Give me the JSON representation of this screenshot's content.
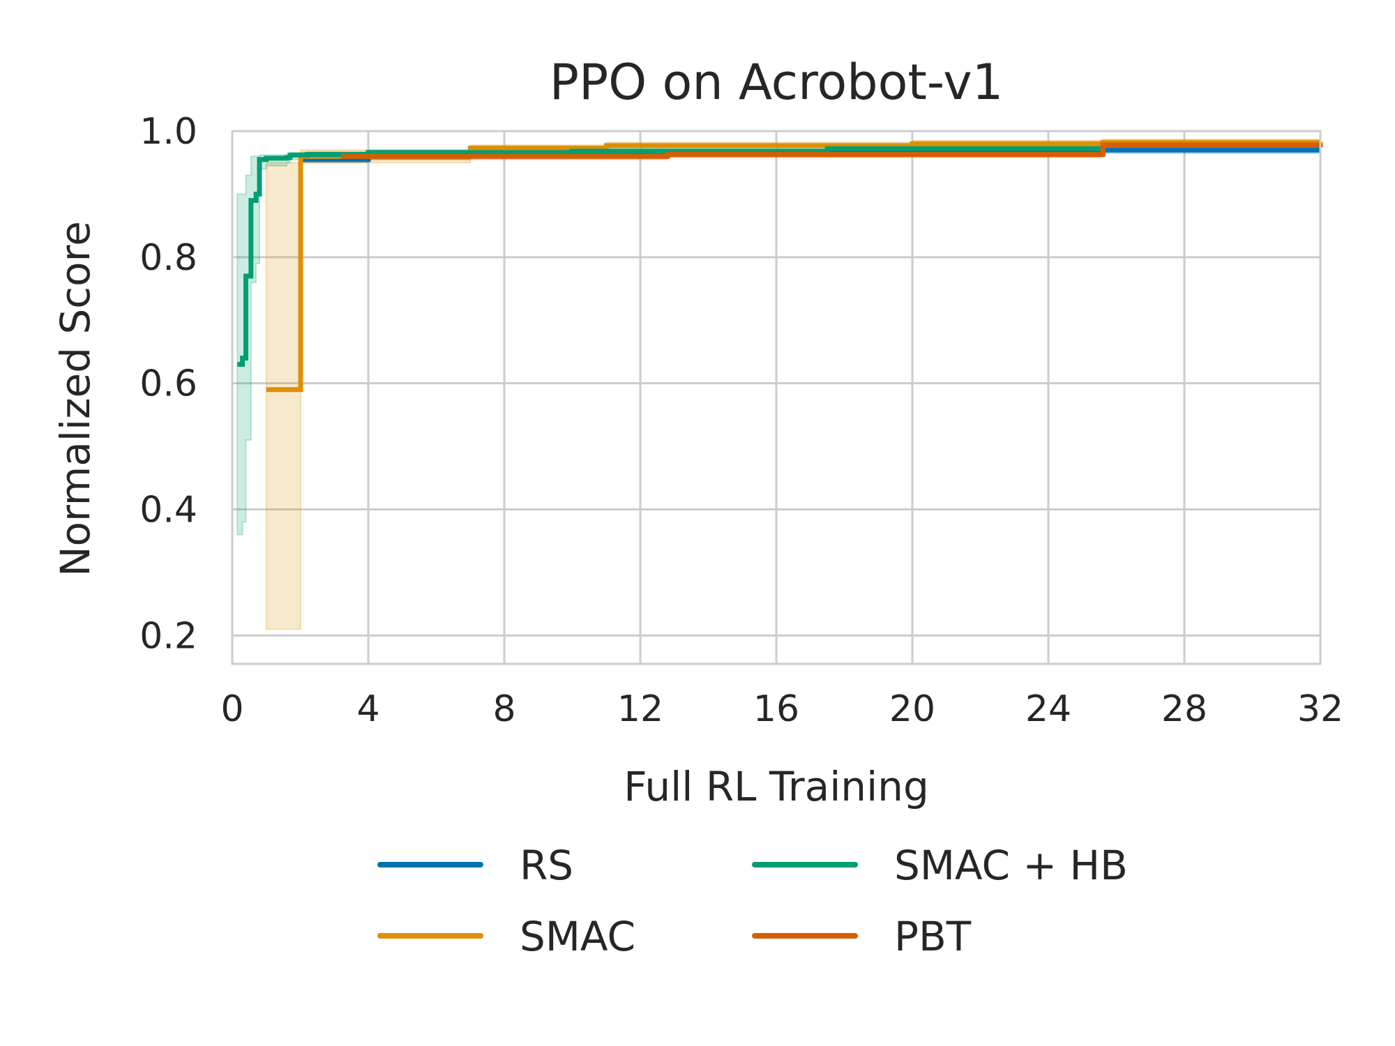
{
  "chart_data": {
    "type": "line",
    "title": "PPO on Acrobot-v1",
    "xlabel": "Full RL Training",
    "ylabel": "Normalized Score",
    "xlim": [
      0,
      32
    ],
    "ylim": [
      0.155,
      1.0
    ],
    "xticks": [
      "0",
      "4",
      "8",
      "12",
      "16",
      "20",
      "24",
      "28",
      "32"
    ],
    "yticks": [
      "0.2",
      "0.4",
      "0.6",
      "0.8",
      "1.0"
    ],
    "grid": true,
    "legend": {
      "placement": "bottom-center",
      "columns": 2
    },
    "series": [
      {
        "name": "RS",
        "color": "#0173b2",
        "step": true,
        "x": [
          2.0,
          4.0,
          7.0,
          11.0,
          18.0,
          25.0,
          32.0
        ],
        "y": [
          0.955,
          0.96,
          0.962,
          0.965,
          0.968,
          0.97,
          0.97
        ],
        "band_lo": [
          0.95,
          0.955,
          0.958,
          0.96,
          0.963,
          0.965,
          0.965
        ],
        "band_hi": [
          0.96,
          0.965,
          0.968,
          0.97,
          0.973,
          0.975,
          0.975
        ]
      },
      {
        "name": "SMAC",
        "color": "#de8f05",
        "step": true,
        "x": [
          1.0,
          2.0,
          2.01,
          7.0,
          11.0,
          20.0,
          25.6,
          32.0
        ],
        "y": [
          0.59,
          0.59,
          0.96,
          0.973,
          0.977,
          0.98,
          0.982,
          0.983
        ],
        "band_lo": [
          0.21,
          0.21,
          0.95,
          0.965,
          0.97,
          0.975,
          0.978,
          0.978
        ],
        "band_hi": [
          0.95,
          0.95,
          0.97,
          0.978,
          0.982,
          0.985,
          0.987,
          0.988
        ]
      },
      {
        "name": "SMAC + HB",
        "color": "#029e73",
        "step": true,
        "x": [
          0.15,
          0.3,
          0.4,
          0.55,
          0.7,
          0.8,
          1.0,
          1.6,
          1.7,
          2.2,
          4.0,
          10.0,
          17.5,
          25.6
        ],
        "y": [
          0.63,
          0.64,
          0.77,
          0.89,
          0.9,
          0.955,
          0.957,
          0.958,
          0.962,
          0.963,
          0.966,
          0.968,
          0.972,
          0.975
        ],
        "band_lo": [
          0.36,
          0.38,
          0.51,
          0.76,
          0.79,
          0.94,
          0.945,
          0.95,
          0.955,
          0.957,
          0.96,
          0.962,
          0.966,
          0.969
        ],
        "band_hi": [
          0.9,
          0.9,
          0.93,
          0.96,
          0.96,
          0.962,
          0.962,
          0.963,
          0.966,
          0.967,
          0.97,
          0.972,
          0.976,
          0.98
        ]
      },
      {
        "name": "PBT",
        "color": "#d55e00",
        "step": true,
        "x": [
          3.2,
          12.8,
          25.6,
          25.61,
          32.0
        ],
        "y": [
          0.96,
          0.963,
          0.966,
          0.978,
          0.98
        ],
        "band_lo": [
          0.955,
          0.958,
          0.961,
          0.973,
          0.975
        ],
        "band_hi": [
          0.965,
          0.968,
          0.971,
          0.983,
          0.985
        ]
      }
    ]
  }
}
